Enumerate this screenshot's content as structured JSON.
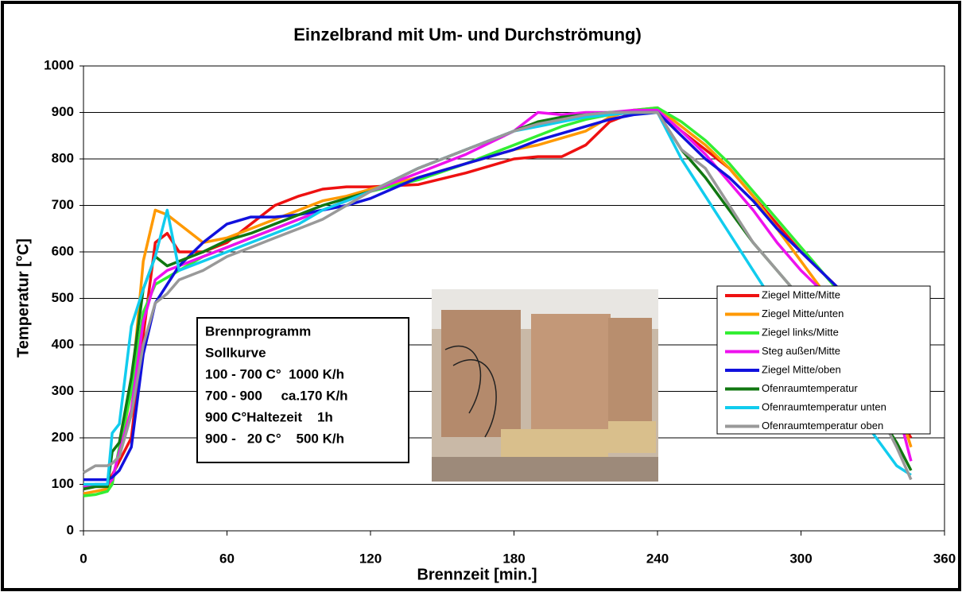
{
  "chart_data": {
    "type": "line",
    "title": "Einzelbrand mit Um- und Durchströmung)",
    "x_label": "Brennzeit [min.]",
    "y_label": "Temperatur [°C]",
    "annotation": [
      "Brennprogramm",
      "Sollkurve",
      "100 - 700 C°  1000 K/h",
      "700 - 900     ca.170 K/h",
      "900 C°Haltezeit    1h",
      "900 -   20 C°    500 K/h"
    ],
    "xlim": [
      0,
      360
    ],
    "xticks": [
      0,
      60,
      120,
      180,
      240,
      300,
      360
    ],
    "ylim": [
      0,
      1000
    ],
    "yticks": [
      0,
      100,
      200,
      300,
      400,
      500,
      600,
      700,
      800,
      900,
      1000
    ],
    "grid": true,
    "legend": "right",
    "x": [
      0,
      5,
      10,
      12,
      15,
      20,
      25,
      30,
      35,
      40,
      50,
      60,
      70,
      80,
      90,
      100,
      110,
      120,
      140,
      160,
      180,
      190,
      200,
      210,
      220,
      230,
      240,
      250,
      260,
      270,
      280,
      290,
      300,
      310,
      320,
      330,
      340,
      346
    ],
    "series": [
      {
        "name": "Ziegel Mitte/Mitte",
        "color": "#ee1111",
        "values": [
          90,
          95,
          95,
          120,
          150,
          200,
          420,
          620,
          640,
          600,
          600,
          620,
          660,
          700,
          720,
          735,
          740,
          740,
          745,
          770,
          800,
          805,
          805,
          830,
          880,
          900,
          905,
          860,
          820,
          780,
          720,
          660,
          600,
          550,
          500,
          380,
          250,
          200
        ]
      },
      {
        "name": "Ziegel Mitte/unten",
        "color": "#ff9900",
        "values": [
          80,
          85,
          90,
          110,
          170,
          300,
          580,
          690,
          680,
          660,
          620,
          630,
          650,
          670,
          690,
          710,
          720,
          735,
          760,
          790,
          820,
          830,
          845,
          860,
          890,
          905,
          910,
          870,
          830,
          780,
          720,
          650,
          580,
          510,
          450,
          380,
          280,
          180
        ]
      },
      {
        "name": "Ziegel links/Mitte",
        "color": "#33ee33",
        "values": [
          75,
          78,
          85,
          100,
          180,
          300,
          470,
          530,
          545,
          560,
          590,
          610,
          630,
          650,
          670,
          690,
          710,
          730,
          755,
          790,
          830,
          850,
          870,
          885,
          895,
          905,
          910,
          880,
          840,
          790,
          730,
          670,
          610,
          550,
          490,
          410,
          300,
          210
        ]
      },
      {
        "name": "Steg außen/Mitte",
        "color": "#ee11ee",
        "values": [
          95,
          100,
          100,
          110,
          170,
          260,
          450,
          540,
          560,
          570,
          590,
          610,
          630,
          650,
          670,
          690,
          710,
          730,
          770,
          810,
          860,
          900,
          895,
          900,
          900,
          905,
          905,
          860,
          810,
          750,
          690,
          620,
          560,
          510,
          450,
          370,
          270,
          150
        ]
      },
      {
        "name": "Ziegel Mitte/oben",
        "color": "#1111dd",
        "values": [
          110,
          110,
          110,
          115,
          130,
          180,
          380,
          490,
          530,
          570,
          620,
          660,
          675,
          675,
          680,
          690,
          700,
          715,
          760,
          790,
          820,
          840,
          855,
          870,
          885,
          895,
          900,
          850,
          800,
          760,
          710,
          650,
          600,
          550,
          500,
          420,
          320,
          220
        ]
      },
      {
        "name": "Ofenraumtemperatur",
        "color": "#117711",
        "values": [
          90,
          95,
          95,
          170,
          190,
          330,
          520,
          590,
          570,
          580,
          600,
          625,
          640,
          660,
          680,
          700,
          715,
          730,
          780,
          820,
          860,
          880,
          890,
          895,
          900,
          900,
          900,
          820,
          760,
          690,
          620,
          560,
          500,
          430,
          350,
          270,
          190,
          130
        ]
      },
      {
        "name": "Ofenraumtemperatur unten",
        "color": "#11ccee",
        "values": [
          100,
          100,
          100,
          210,
          230,
          440,
          520,
          590,
          690,
          560,
          580,
          600,
          620,
          640,
          660,
          690,
          710,
          730,
          780,
          820,
          860,
          870,
          880,
          890,
          895,
          900,
          900,
          800,
          720,
          640,
          560,
          480,
          420,
          350,
          280,
          210,
          140,
          120
        ]
      },
      {
        "name": "Ofenraumtemperatur oben",
        "color": "#999999",
        "values": [
          125,
          140,
          140,
          145,
          160,
          250,
          400,
          490,
          510,
          540,
          560,
          590,
          610,
          630,
          650,
          670,
          700,
          730,
          780,
          820,
          860,
          875,
          885,
          895,
          900,
          900,
          900,
          820,
          780,
          700,
          620,
          560,
          500,
          430,
          360,
          280,
          180,
          110
        ]
      }
    ]
  }
}
